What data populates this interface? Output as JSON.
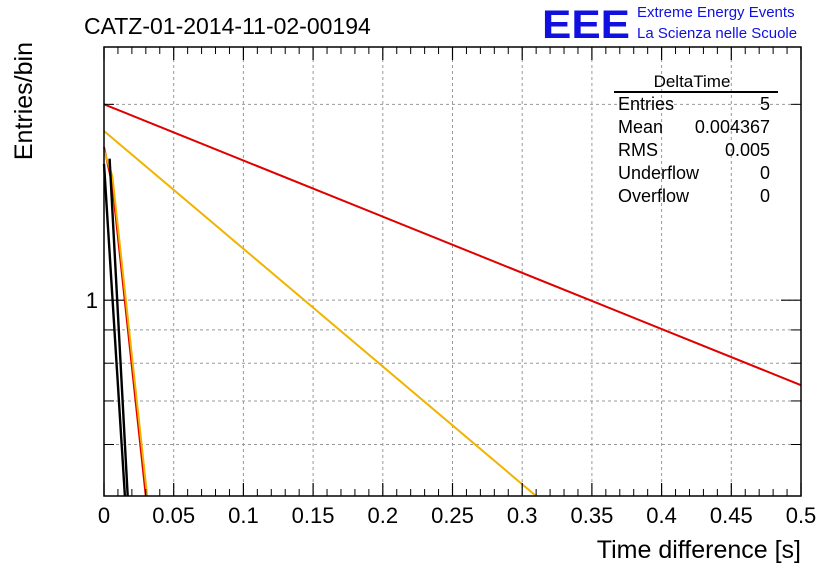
{
  "chart_data": {
    "type": "line",
    "title": "CATZ-01-2014-11-02-00194",
    "xlabel": "Time difference [s]",
    "ylabel": "Entries/bin",
    "xlim": [
      0,
      0.5
    ],
    "ylim": [
      0.5,
      2.45
    ],
    "y_scale": "log",
    "grid": true,
    "x_ticks": [
      "0",
      "0.05",
      "0.1",
      "0.15",
      "0.2",
      "0.25",
      "0.3",
      "0.35",
      "0.4",
      "0.45",
      "0.5"
    ],
    "y_ticks": [
      "1"
    ],
    "series": [
      {
        "color": "#e00000",
        "x": [
          0.0,
          0.5
        ],
        "y": [
          2.0,
          0.74
        ]
      },
      {
        "color": "#f0b400",
        "x": [
          0.0,
          0.31
        ],
        "y": [
          1.82,
          0.5
        ]
      },
      {
        "color": "#e00000",
        "x": [
          0.0,
          0.006,
          0.03
        ],
        "y": [
          1.72,
          1.5,
          0.5
        ]
      },
      {
        "color": "#f0b400",
        "x": [
          0.0,
          0.006,
          0.031
        ],
        "y": [
          1.7,
          1.55,
          0.5
        ]
      },
      {
        "color": "#000000",
        "x": [
          0.0,
          0.015
        ],
        "y": [
          1.62,
          0.5
        ]
      },
      {
        "color": "#000000",
        "x": [
          0.004,
          0.017
        ],
        "y": [
          1.65,
          0.5
        ]
      }
    ]
  },
  "stats_box": {
    "title": "DeltaTime",
    "rows": [
      {
        "label": "Entries",
        "value": "5"
      },
      {
        "label": "Mean",
        "value": "0.004367"
      },
      {
        "label": "RMS",
        "value": "0.005"
      },
      {
        "label": "Underflow",
        "value": "0"
      },
      {
        "label": "Overflow",
        "value": "0"
      }
    ]
  },
  "logo": {
    "text": "EEE",
    "line1": "Extreme Energy Events",
    "line2": "La Scienza nelle Scuole",
    "color": "#1010e0"
  }
}
